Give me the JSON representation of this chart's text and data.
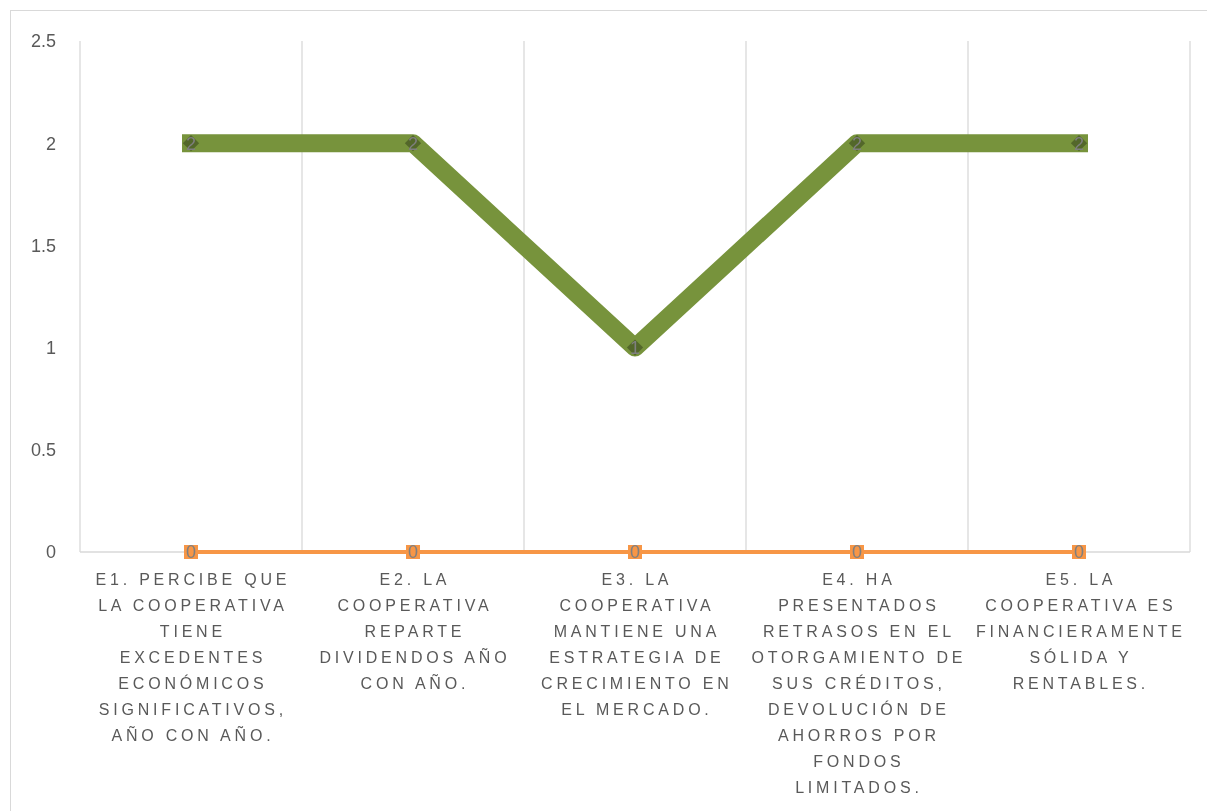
{
  "chart_data": {
    "type": "line",
    "categories": [
      "E1. PERCIBE QUE LA COOPERATIVA TIENE EXCEDENTES ECONÓMICOS SIGNIFICATIVOS, AÑO CON AÑO.",
      "E2. LA COOPERATIVA REPARTE DIVIDENDOS AÑO CON AÑO.",
      "E3. LA COOPERATIVA MANTIENE UNA ESTRATEGIA DE CRECIMIENTO EN EL MERCADO.",
      "E4. HA PRESENTADOS RETRASOS EN EL OTORGAMIENTO DE SUS CRÉDITOS, DEVOLUCIÓN DE AHORROS POR FONDOS LIMITADOS.",
      "E5. LA COOPERATIVA ES FINANCIERAMENTE SÓLIDA Y RENTABLES."
    ],
    "series": [
      {
        "color": "#77933c",
        "values": [
          2,
          2,
          1,
          2,
          2
        ],
        "marker": "diamond"
      },
      {
        "color": "#f79646",
        "values": [
          0,
          0,
          0,
          0,
          0
        ],
        "marker": "square"
      }
    ],
    "ylim": [
      0,
      2.5
    ],
    "yticks": [
      0,
      0.5,
      1,
      1.5,
      2,
      2.5
    ],
    "grid": "x",
    "data_labels": true
  }
}
